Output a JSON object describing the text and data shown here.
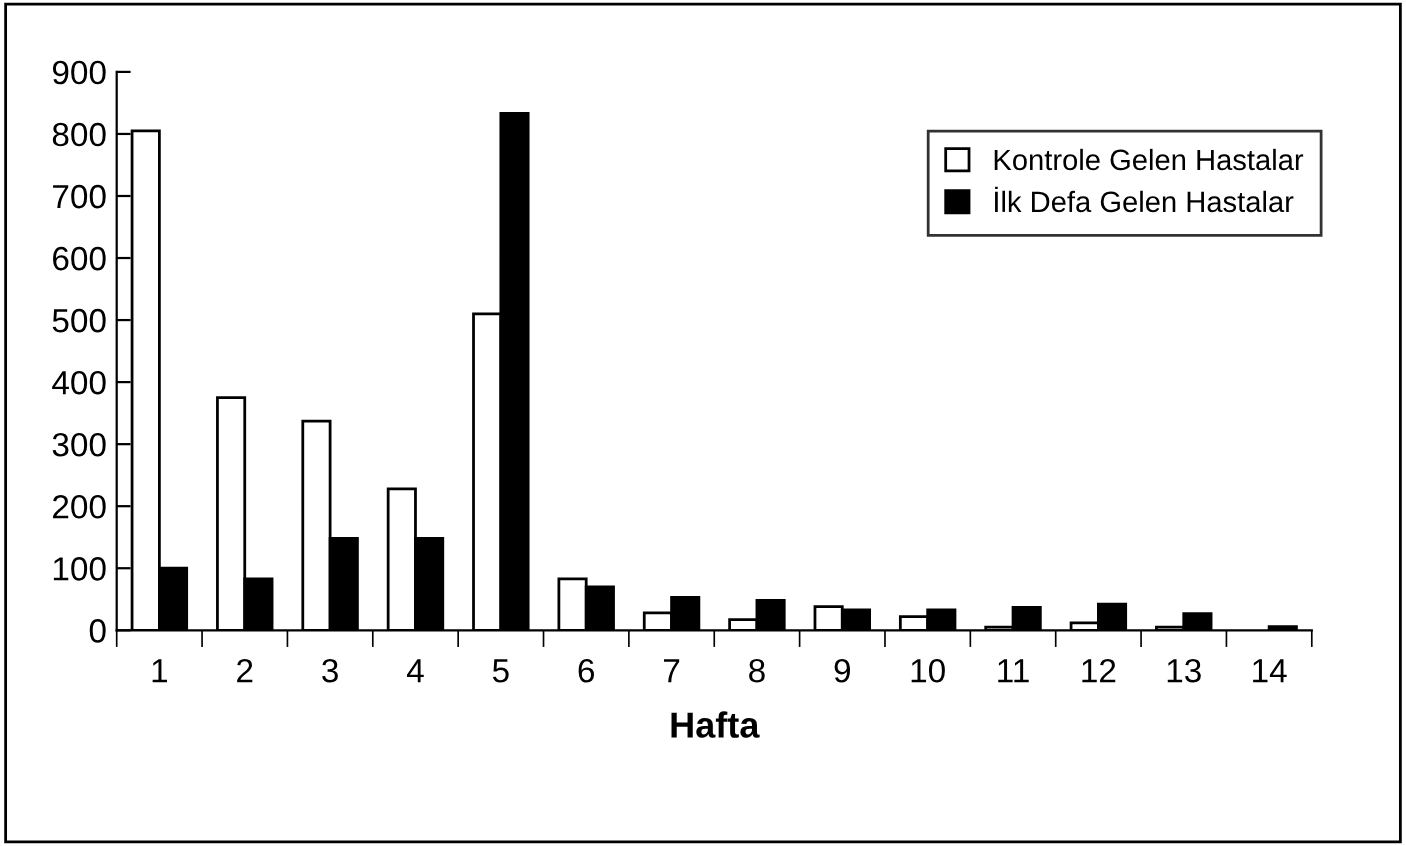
{
  "chart_data": {
    "type": "bar",
    "xlabel": "Hafta",
    "categories": [
      "1",
      "2",
      "3",
      "4",
      "5",
      "6",
      "7",
      "8",
      "9",
      "10",
      "11",
      "12",
      "13",
      "14"
    ],
    "series": [
      {
        "name": "Kontrole Gelen Hastalar",
        "color": "#ffffff",
        "values": [
          805,
          375,
          337,
          228,
          510,
          83,
          28,
          17,
          38,
          22,
          5,
          12,
          5,
          null
        ]
      },
      {
        "name": "İlk Defa Gelen Hastalar",
        "color": "#000000",
        "values": [
          100,
          83,
          148,
          148,
          833,
          70,
          53,
          48,
          33,
          33,
          37,
          42,
          27,
          6
        ]
      }
    ],
    "ylim": [
      0,
      900
    ],
    "yticks": [
      0,
      100,
      200,
      300,
      400,
      500,
      600,
      700,
      800,
      900
    ],
    "grid": false,
    "legend": "top right"
  }
}
